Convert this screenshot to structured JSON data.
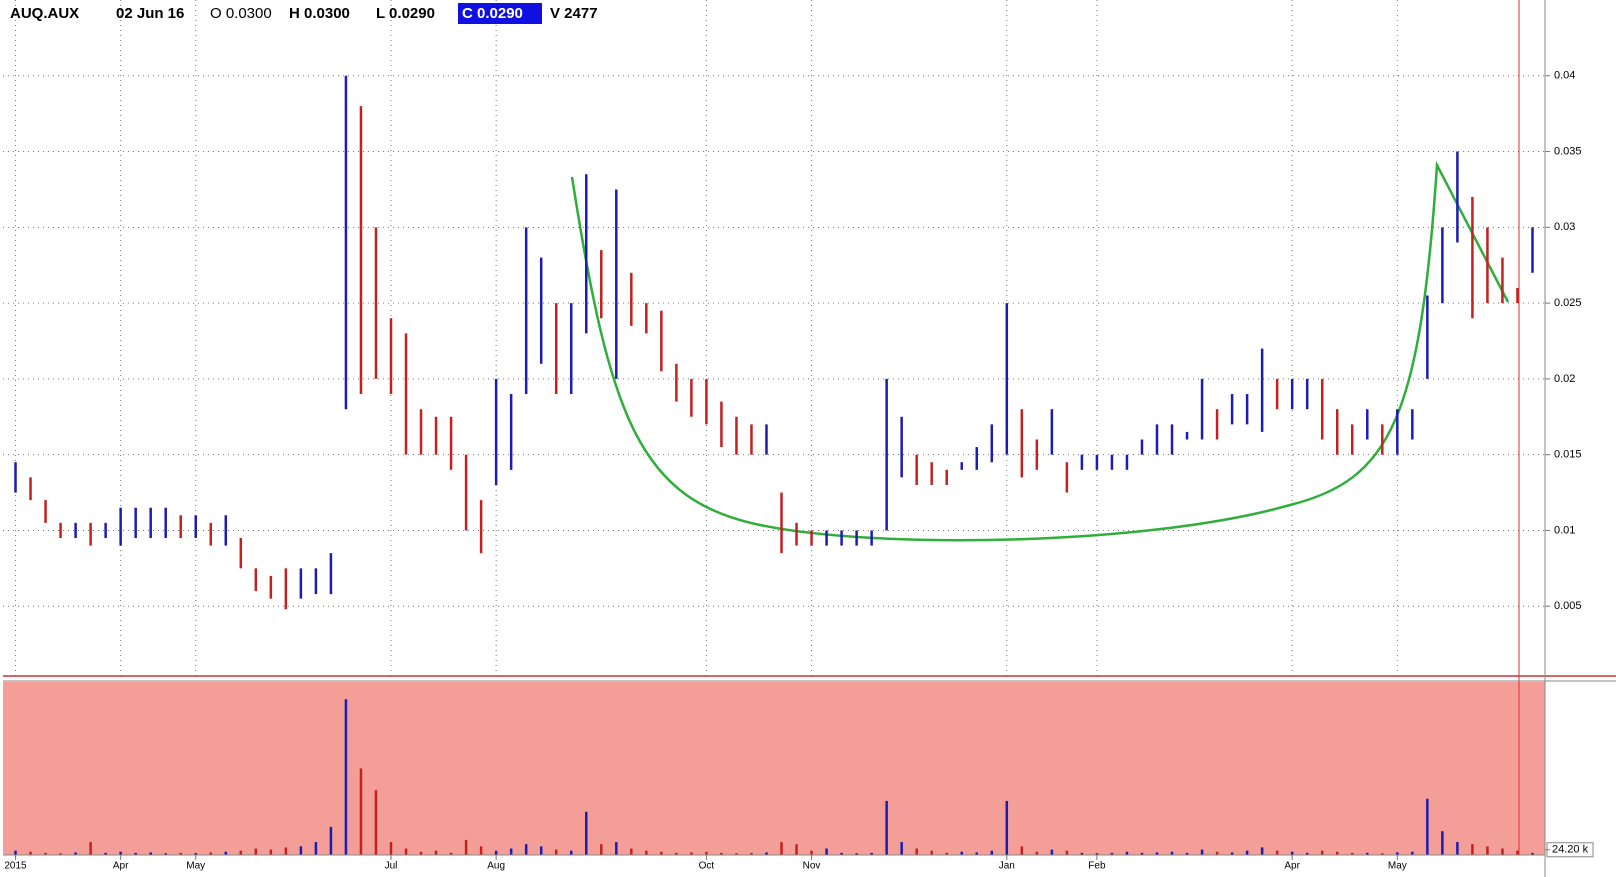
{
  "chart_data": {
    "type": "hlbar",
    "header": {
      "symbol": "AUQ.AUX",
      "date": "02 Jun 16",
      "open": "O 0.0300",
      "high": "H 0.0300",
      "low": "L 0.0290",
      "close": "C 0.0290",
      "volume": "V 2477"
    },
    "categories": [
      "2015",
      null,
      null,
      null,
      null,
      null,
      null,
      "Apr",
      null,
      null,
      null,
      null,
      "May",
      null,
      null,
      null,
      null,
      null,
      null,
      null,
      null,
      null,
      null,
      null,
      null,
      "Jul",
      null,
      null,
      null,
      null,
      null,
      null,
      "Aug",
      null,
      null,
      null,
      null,
      null,
      null,
      null,
      null,
      null,
      null,
      null,
      null,
      null,
      "Oct",
      null,
      null,
      null,
      null,
      null,
      null,
      "Nov",
      null,
      null,
      null,
      null,
      null,
      null,
      null,
      null,
      null,
      null,
      null,
      null,
      "Jan",
      null,
      null,
      null,
      null,
      null,
      "Feb",
      null,
      null,
      null,
      null,
      null,
      null,
      null,
      null,
      null,
      null,
      null,
      null,
      "Apr",
      null,
      null,
      null,
      null,
      null,
      null,
      "May",
      null,
      null,
      null,
      null,
      null,
      null,
      null,
      null,
      null
    ],
    "high": [
      0.0145,
      0.0135,
      0.012,
      0.0105,
      0.0105,
      0.0105,
      0.0105,
      0.0115,
      0.0115,
      0.0115,
      0.0115,
      0.011,
      0.011,
      0.0105,
      0.011,
      0.0095,
      0.0075,
      0.007,
      0.0075,
      0.0075,
      0.0075,
      0.0085,
      0.04,
      0.038,
      0.03,
      0.024,
      0.023,
      0.018,
      0.0175,
      0.0175,
      0.015,
      0.012,
      0.02,
      0.019,
      0.03,
      0.028,
      0.025,
      0.025,
      0.0335,
      0.0285,
      0.0325,
      0.027,
      0.025,
      0.0245,
      0.021,
      0.02,
      0.02,
      0.0185,
      0.0175,
      0.017,
      0.017,
      0.0125,
      0.0105,
      0.01,
      0.01,
      0.01,
      0.01,
      0.01,
      0.02,
      0.0175,
      0.015,
      0.0145,
      0.014,
      0.0145,
      0.0155,
      0.017,
      0.025,
      0.018,
      0.016,
      0.018,
      0.0145,
      0.015,
      0.015,
      0.015,
      0.015,
      0.016,
      0.017,
      0.017,
      0.0165,
      0.02,
      0.018,
      0.019,
      0.019,
      0.022,
      0.02,
      0.02,
      0.02,
      0.02,
      0.018,
      0.017,
      0.018,
      0.017,
      0.018,
      0.018,
      0.0255,
      0.03,
      0.035,
      0.032,
      0.03,
      0.028,
      0.026,
      0.03
    ],
    "low": [
      0.0125,
      0.012,
      0.0105,
      0.0095,
      0.0095,
      0.009,
      0.0095,
      0.009,
      0.0095,
      0.0095,
      0.0095,
      0.0095,
      0.0095,
      0.009,
      0.009,
      0.0075,
      0.006,
      0.0055,
      0.0048,
      0.0055,
      0.0058,
      0.0058,
      0.018,
      0.019,
      0.02,
      0.019,
      0.015,
      0.015,
      0.015,
      0.014,
      0.01,
      0.0085,
      0.013,
      0.014,
      0.019,
      0.021,
      0.019,
      0.019,
      0.023,
      0.024,
      0.02,
      0.0235,
      0.023,
      0.0205,
      0.0185,
      0.0175,
      0.017,
      0.0155,
      0.015,
      0.015,
      0.015,
      0.0085,
      0.009,
      0.009,
      0.009,
      0.009,
      0.009,
      0.009,
      0.01,
      0.0135,
      0.013,
      0.013,
      0.013,
      0.014,
      0.014,
      0.0145,
      0.015,
      0.0135,
      0.014,
      0.015,
      0.0125,
      0.014,
      0.014,
      0.014,
      0.014,
      0.015,
      0.015,
      0.015,
      0.016,
      0.016,
      0.016,
      0.017,
      0.017,
      0.0165,
      0.018,
      0.018,
      0.018,
      0.016,
      0.015,
      0.015,
      0.016,
      0.015,
      0.015,
      0.016,
      0.02,
      0.025,
      0.029,
      0.024,
      0.025,
      0.025,
      0.025,
      0.027
    ],
    "volume": [
      20000,
      15000,
      10000,
      8000,
      12000,
      60000,
      10000,
      15000,
      10000,
      12000,
      8000,
      10000,
      9000,
      12000,
      15000,
      20000,
      30000,
      25000,
      35000,
      40000,
      60000,
      130000,
      720000,
      400000,
      300000,
      60000,
      30000,
      15000,
      20000,
      10000,
      70000,
      40000,
      20000,
      30000,
      50000,
      40000,
      25000,
      20000,
      200000,
      50000,
      60000,
      30000,
      20000,
      15000,
      10000,
      12000,
      15000,
      10000,
      8000,
      10000,
      12000,
      60000,
      50000,
      20000,
      30000,
      10000,
      8000,
      10000,
      250000,
      60000,
      30000,
      20000,
      10000,
      15000,
      12000,
      20000,
      250000,
      40000,
      15000,
      25000,
      20000,
      10000,
      8000,
      10000,
      15000,
      10000,
      12000,
      15000,
      10000,
      25000,
      15000,
      12000,
      20000,
      35000,
      20000,
      15000,
      10000,
      20000,
      15000,
      10000,
      10000,
      8000,
      12000,
      15000,
      260000,
      110000,
      60000,
      50000,
      40000,
      30000,
      20000,
      10000
    ],
    "up_color": "#1c1cb4",
    "down_color": "#c42020",
    "ylim": [
      0,
      0.045
    ],
    "yticks": [
      0.005,
      0.01,
      0.015,
      0.02,
      0.025,
      0.03,
      0.035,
      0.04
    ],
    "volume_ylim": [
      0,
      800000
    ],
    "volume_yticks": [
      {
        "value": 24200,
        "label": "24.20 k"
      }
    ],
    "grid": true
  }
}
